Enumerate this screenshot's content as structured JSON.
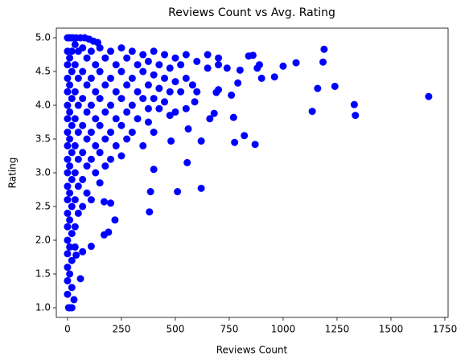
{
  "chart_data": {
    "type": "scatter",
    "title": "Reviews Count vs Avg. Rating",
    "x_label": "Reviews Count",
    "y_label": "Rating",
    "color": "#0000ff",
    "x": [
      1675,
      1330,
      1335,
      1240,
      1190,
      1185,
      1160,
      1135,
      1060,
      1000,
      960,
      900,
      890,
      880,
      870,
      860,
      840,
      820,
      800,
      790,
      775,
      770,
      760,
      740,
      700,
      690,
      680,
      660,
      620,
      620,
      590,
      580,
      560,
      555,
      510,
      480,
      400,
      385,
      380,
      220,
      200,
      170,
      190,
      170,
      110,
      60,
      70,
      40,
      30,
      10,
      5,
      20,
      0,
      5,
      10,
      15,
      25,
      40,
      60,
      80,
      100,
      120,
      140,
      0,
      0,
      0,
      0,
      0,
      0,
      0,
      0,
      0,
      0,
      0,
      0,
      0,
      0,
      0,
      0,
      0,
      0,
      0,
      10,
      10,
      10,
      10,
      10,
      10,
      10,
      10,
      10,
      20,
      20,
      20,
      20,
      20,
      20,
      20,
      20,
      20,
      20,
      35,
      35,
      35,
      35,
      35,
      35,
      35,
      35,
      35,
      50,
      50,
      50,
      50,
      50,
      50,
      50,
      70,
      70,
      70,
      70,
      70,
      70,
      70,
      90,
      90,
      90,
      90,
      90,
      90,
      110,
      110,
      110,
      110,
      110,
      110,
      130,
      130,
      130,
      130,
      130,
      150,
      150,
      150,
      150,
      150,
      150,
      175,
      175,
      175,
      175,
      175,
      200,
      200,
      200,
      200,
      200,
      225,
      225,
      225,
      225,
      250,
      250,
      250,
      250,
      250,
      275,
      275,
      275,
      275,
      300,
      300,
      300,
      300,
      325,
      325,
      325,
      350,
      350,
      350,
      350,
      375,
      375,
      375,
      375,
      400,
      400,
      400,
      400,
      425,
      425,
      425,
      450,
      450,
      450,
      475,
      475,
      475,
      500,
      500,
      500,
      525,
      525,
      550,
      550,
      550,
      600,
      600,
      650,
      650,
      700,
      700
    ],
    "values": [
      4.13,
      4.01,
      3.85,
      4.28,
      4.83,
      4.64,
      4.25,
      3.91,
      4.63,
      4.58,
      4.42,
      4.4,
      4.6,
      4.55,
      3.42,
      4.74,
      4.73,
      3.55,
      4.52,
      4.33,
      3.45,
      3.82,
      4.15,
      4.55,
      4.23,
      4.19,
      3.88,
      3.8,
      3.47,
      2.77,
      4.05,
      4.3,
      3.65,
      3.15,
      2.72,
      3.47,
      3.05,
      2.72,
      2.42,
      2.3,
      2.55,
      2.57,
      2.12,
      2.08,
      1.91,
      1.43,
      1.83,
      1.78,
      1.12,
      1.0,
      1.0,
      1.0,
      5.0,
      5.0,
      5.0,
      5.0,
      5.0,
      5.0,
      5.0,
      5.0,
      4.98,
      4.95,
      4.93,
      4.8,
      4.6,
      4.4,
      4.2,
      4.0,
      3.8,
      3.6,
      3.4,
      3.2,
      3.0,
      2.8,
      2.6,
      2.4,
      2.2,
      2.0,
      1.8,
      1.6,
      1.4,
      1.2,
      4.7,
      4.3,
      3.9,
      3.5,
      3.1,
      2.7,
      2.3,
      1.9,
      1.5,
      4.8,
      4.5,
      4.1,
      3.7,
      3.3,
      2.9,
      2.5,
      2.1,
      1.7,
      1.3,
      4.9,
      4.6,
      4.2,
      3.8,
      3.4,
      3.0,
      2.6,
      2.2,
      1.9,
      4.8,
      4.4,
      4.0,
      3.6,
      3.2,
      2.8,
      2.4,
      4.85,
      4.5,
      4.1,
      3.7,
      3.3,
      2.9,
      2.5,
      4.7,
      4.3,
      3.9,
      3.5,
      3.1,
      2.7,
      4.8,
      4.4,
      4.0,
      3.6,
      3.2,
      2.6,
      4.6,
      4.2,
      3.8,
      3.4,
      3.0,
      4.85,
      4.5,
      4.1,
      3.7,
      3.3,
      2.85,
      4.7,
      4.3,
      3.9,
      3.5,
      3.1,
      4.8,
      4.4,
      4.0,
      3.6,
      3.2,
      4.6,
      4.2,
      3.8,
      3.4,
      4.85,
      4.5,
      4.1,
      3.7,
      3.25,
      4.7,
      4.3,
      3.9,
      3.5,
      4.8,
      4.4,
      4.0,
      3.6,
      4.6,
      4.2,
      3.8,
      4.75,
      4.5,
      4.1,
      3.4,
      4.65,
      4.3,
      3.95,
      3.75,
      4.8,
      4.45,
      4.1,
      3.6,
      4.6,
      4.25,
      3.95,
      4.75,
      4.4,
      4.05,
      4.55,
      4.2,
      3.85,
      4.7,
      4.35,
      3.9,
      4.6,
      4.2,
      4.75,
      4.4,
      3.95,
      4.65,
      4.2,
      4.75,
      4.55,
      4.7,
      4.6
    ],
    "xlim": [
      -52,
      1765
    ],
    "ylim": [
      0.857,
      5.143
    ],
    "xticks": [
      0,
      250,
      500,
      750,
      1000,
      1250,
      1500,
      1750
    ],
    "yticks": [
      {
        "value": 1,
        "label": "1.0"
      },
      {
        "value": 1.5,
        "label": "1.5"
      },
      {
        "value": 2,
        "label": "2.0"
      },
      {
        "value": 2.5,
        "label": "2.5"
      },
      {
        "value": 3,
        "label": "3.0"
      },
      {
        "value": 3.5,
        "label": "3.5"
      },
      {
        "value": 4,
        "label": "4.0"
      },
      {
        "value": 4.5,
        "label": "4.5"
      },
      {
        "value": 5,
        "label": "5.0"
      }
    ]
  }
}
